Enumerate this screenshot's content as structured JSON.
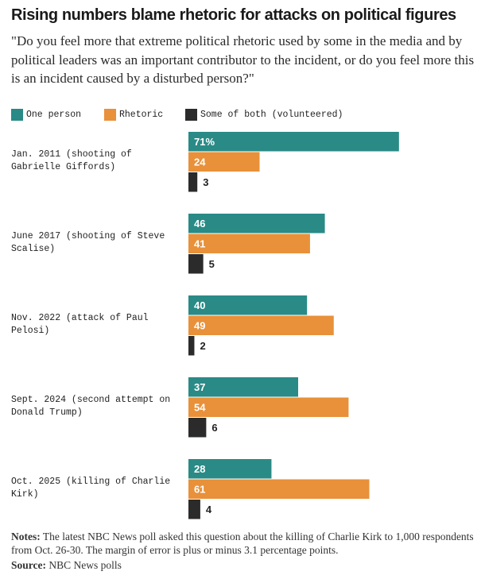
{
  "chart_data": {
    "type": "bar",
    "orientation": "horizontal",
    "title": "Rising numbers blame rhetoric for attacks on political figures",
    "subtitle": "\"Do you feel more that extreme political rhetoric used by some in the media and by political leaders was an important contributor to the incident, or do you feel more this is an incident caused by a disturbed person?\"",
    "categories": [
      "Jan. 2011 (shooting of Gabrielle Giffords)",
      "June 2017 (shooting of Steve Scalise)",
      "Nov. 2022 (attack of Paul Pelosi)",
      "Sept. 2024 (second attempt on Donald Trump)",
      "Oct. 2025 (killing of Charlie Kirk)"
    ],
    "series": [
      {
        "name": "One person",
        "color": "#2a8a86",
        "values": [
          71,
          46,
          40,
          37,
          28
        ]
      },
      {
        "name": "Rhetoric",
        "color": "#e8913a",
        "values": [
          24,
          41,
          49,
          54,
          61
        ]
      },
      {
        "name": "Some of both (volunteered)",
        "color": "#2b2b2b",
        "values": [
          3,
          5,
          2,
          6,
          4
        ]
      }
    ],
    "first_label_suffix": "%",
    "xlim": [
      0,
      100
    ],
    "legend_position": "top-left"
  },
  "notes": {
    "label": "Notes:",
    "text": "The latest NBC News poll asked this question about the killing of Charlie Kirk to 1,000 respondents from Oct. 26-30. The margin of error is plus or minus 3.1 percentage points."
  },
  "source": {
    "label": "Source:",
    "text": "NBC News polls"
  }
}
